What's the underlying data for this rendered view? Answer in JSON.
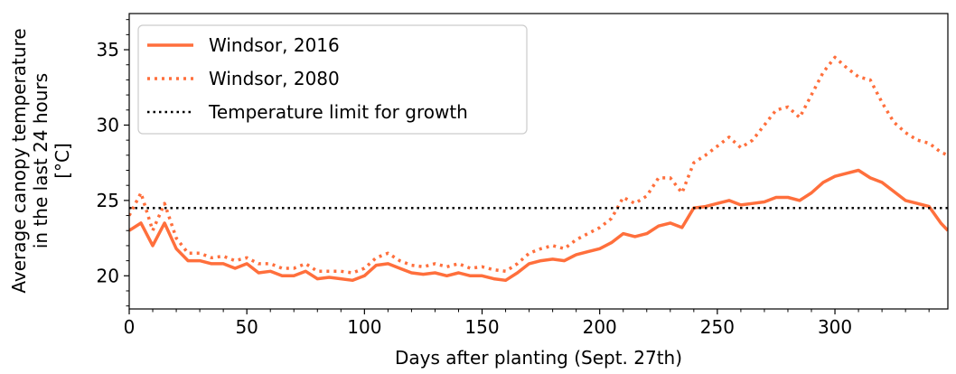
{
  "chart_data": {
    "type": "line",
    "title": "",
    "xlabel": "Days after planting (Sept. 27th)",
    "ylabel_lines": [
      "Average canopy temperature",
      "in the last 24 hours",
      "[°C]"
    ],
    "xlim": [
      0,
      348
    ],
    "ylim": [
      17.8,
      37.4
    ],
    "xticks": [
      0,
      50,
      100,
      150,
      200,
      250,
      300
    ],
    "yticks": [
      20,
      25,
      30,
      35
    ],
    "legend_position": "upper-left",
    "grid": false,
    "series": [
      {
        "name": "Windsor, 2016",
        "style": "solid",
        "color": "#ff6f3c",
        "x": [
          0,
          5,
          10,
          15,
          20,
          25,
          30,
          35,
          40,
          45,
          50,
          55,
          60,
          65,
          70,
          75,
          80,
          85,
          90,
          95,
          100,
          105,
          110,
          115,
          120,
          125,
          130,
          135,
          140,
          145,
          150,
          155,
          160,
          165,
          170,
          175,
          180,
          185,
          190,
          195,
          200,
          205,
          210,
          215,
          220,
          225,
          230,
          235,
          240,
          245,
          250,
          255,
          260,
          265,
          270,
          275,
          280,
          285,
          290,
          295,
          300,
          305,
          310,
          315,
          320,
          325,
          330,
          335,
          340,
          345,
          348
        ],
        "y": [
          23.0,
          23.5,
          22.0,
          23.5,
          21.8,
          21.0,
          21.0,
          20.8,
          20.8,
          20.5,
          20.8,
          20.2,
          20.3,
          20.0,
          20.0,
          20.3,
          19.8,
          19.9,
          19.8,
          19.7,
          20.0,
          20.7,
          20.8,
          20.5,
          20.2,
          20.1,
          20.2,
          20.0,
          20.2,
          20.0,
          20.0,
          19.8,
          19.7,
          20.2,
          20.8,
          21.0,
          21.1,
          21.0,
          21.4,
          21.6,
          21.8,
          22.2,
          22.8,
          22.6,
          22.8,
          23.3,
          23.5,
          23.2,
          24.5,
          24.6,
          24.8,
          25.0,
          24.7,
          24.8,
          24.9,
          25.2,
          25.2,
          25.0,
          25.5,
          26.2,
          26.6,
          26.8,
          27.0,
          26.5,
          26.2,
          25.6,
          25.0,
          24.8,
          24.6,
          23.5,
          23.0
        ]
      },
      {
        "name": "Windsor, 2080",
        "style": "dotted",
        "color": "#ff6f3c",
        "x": [
          0,
          5,
          10,
          15,
          20,
          25,
          30,
          35,
          40,
          45,
          50,
          55,
          60,
          65,
          70,
          75,
          80,
          85,
          90,
          95,
          100,
          105,
          110,
          115,
          120,
          125,
          130,
          135,
          140,
          145,
          150,
          155,
          160,
          165,
          170,
          175,
          180,
          185,
          190,
          195,
          200,
          205,
          210,
          215,
          220,
          225,
          230,
          235,
          240,
          245,
          250,
          255,
          260,
          265,
          270,
          275,
          280,
          285,
          290,
          295,
          300,
          305,
          310,
          315,
          320,
          325,
          330,
          335,
          340,
          345,
          348
        ],
        "y": [
          24.0,
          25.5,
          23.0,
          24.8,
          22.5,
          21.5,
          21.5,
          21.2,
          21.3,
          21.0,
          21.2,
          20.8,
          20.8,
          20.5,
          20.5,
          20.8,
          20.3,
          20.3,
          20.3,
          20.2,
          20.5,
          21.2,
          21.5,
          21.0,
          20.7,
          20.6,
          20.8,
          20.6,
          20.8,
          20.5,
          20.6,
          20.4,
          20.3,
          20.8,
          21.5,
          21.8,
          22.0,
          21.8,
          22.4,
          22.8,
          23.2,
          23.8,
          25.2,
          24.8,
          25.3,
          26.5,
          26.5,
          25.5,
          27.5,
          28.0,
          28.6,
          29.2,
          28.5,
          29.0,
          30.0,
          31.0,
          31.2,
          30.5,
          32.0,
          33.5,
          34.5,
          33.8,
          33.2,
          33.0,
          31.5,
          30.2,
          29.5,
          29.0,
          28.8,
          28.2,
          28.0
        ]
      },
      {
        "name": "Temperature limit for growth",
        "style": "dotted",
        "color": "#000000",
        "x": [
          0,
          348
        ],
        "y": [
          24.5,
          24.5
        ]
      }
    ]
  }
}
